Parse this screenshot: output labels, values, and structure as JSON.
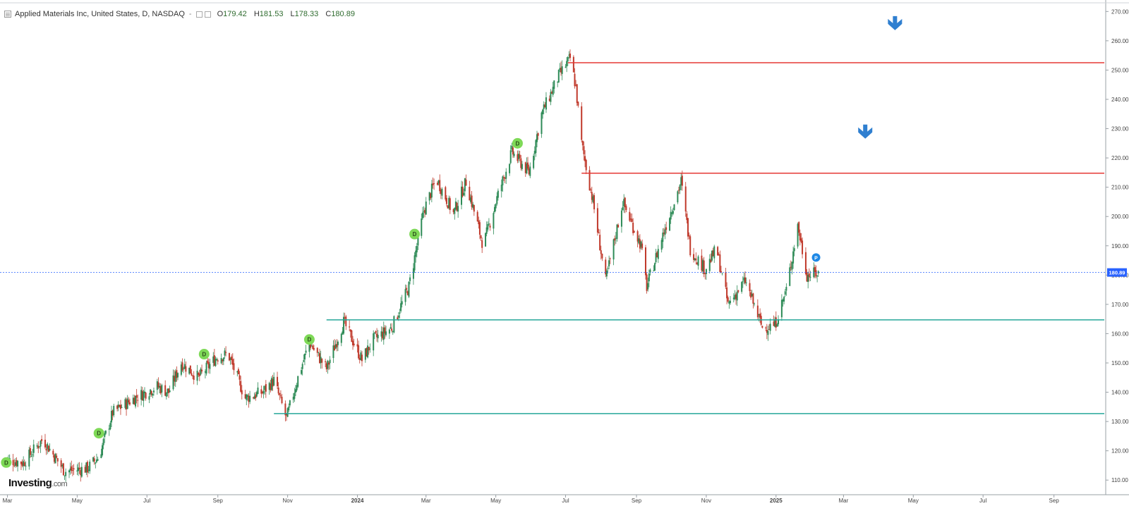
{
  "header": {
    "symbol": "Applied Materials Inc, United States, D, NASDAQ",
    "dash": "-",
    "open": "179.42",
    "high": "181.53",
    "low": "178.33",
    "close": "180.89",
    "open_prefix": "O",
    "high_prefix": "H",
    "low_prefix": "L",
    "close_prefix": "C"
  },
  "logo": {
    "brand": "Investing",
    "domain": ".com"
  },
  "colors": {
    "up": "#2e8b57",
    "down": "#c0392b",
    "resistance": "#e53935",
    "support": "#26a69a",
    "price_line": "#2962ff",
    "dividend_marker": "#7ed957",
    "arrow": "#2f7fd0"
  },
  "icons": [
    "menu-icon",
    "down-arrow-icon",
    "dividend-marker-icon",
    "earnings-marker-icon"
  ],
  "chart_data": {
    "type": "candlestick",
    "title": "Applied Materials Inc, United States, D, NASDAQ",
    "ylim": [
      105,
      272
    ],
    "y_ticks": [
      "110.00",
      "120.00",
      "130.00",
      "140.00",
      "150.00",
      "160.00",
      "170.00",
      "180.00",
      "190.00",
      "200.00",
      "210.00",
      "220.00",
      "230.00",
      "240.00",
      "250.00",
      "260.00",
      "270.00"
    ],
    "x_ticks": [
      "Mar",
      "May",
      "Jul",
      "Sep",
      "Nov",
      "2024",
      "Mar",
      "May",
      "Jul",
      "Sep",
      "Nov",
      "2025",
      "Mar",
      "May",
      "Jul",
      "Sep"
    ],
    "x_range": [
      "2023-02-25",
      "2025-10-15"
    ],
    "price_path": [
      [
        "2023-02-27",
        117
      ],
      [
        "2023-03-15",
        116
      ],
      [
        "2023-04-01",
        124
      ],
      [
        "2023-04-20",
        113
      ],
      [
        "2023-05-10",
        114
      ],
      [
        "2023-05-20",
        118
      ],
      [
        "2023-06-01",
        133
      ],
      [
        "2023-06-20",
        138
      ],
      [
        "2023-07-10",
        142
      ],
      [
        "2023-07-20",
        140
      ],
      [
        "2023-07-31",
        150
      ],
      [
        "2023-08-15",
        145
      ],
      [
        "2023-08-31",
        152
      ],
      [
        "2023-09-10",
        153
      ],
      [
        "2023-09-25",
        138
      ],
      [
        "2023-10-10",
        140
      ],
      [
        "2023-10-20",
        144
      ],
      [
        "2023-10-31",
        131
      ],
      [
        "2023-11-10",
        145
      ],
      [
        "2023-11-20",
        157
      ],
      [
        "2023-12-05",
        148
      ],
      [
        "2023-12-20",
        164
      ],
      [
        "2024-01-05",
        151
      ],
      [
        "2024-01-15",
        158
      ],
      [
        "2024-01-31",
        162
      ],
      [
        "2024-02-15",
        176
      ],
      [
        "2024-02-28",
        202
      ],
      [
        "2024-03-10",
        213
      ],
      [
        "2024-03-25",
        201
      ],
      [
        "2024-04-05",
        212
      ],
      [
        "2024-04-20",
        190
      ],
      [
        "2024-05-01",
        205
      ],
      [
        "2024-05-15",
        222
      ],
      [
        "2024-05-30",
        215
      ],
      [
        "2024-06-10",
        235
      ],
      [
        "2024-06-25",
        248
      ],
      [
        "2024-07-05",
        254
      ],
      [
        "2024-07-10",
        244
      ],
      [
        "2024-07-15",
        225
      ],
      [
        "2024-07-25",
        205
      ],
      [
        "2024-08-05",
        178
      ],
      [
        "2024-08-20",
        205
      ],
      [
        "2024-09-05",
        190
      ],
      [
        "2024-09-10",
        176
      ],
      [
        "2024-09-25",
        195
      ],
      [
        "2024-10-10",
        212
      ],
      [
        "2024-10-18",
        189
      ],
      [
        "2024-10-31",
        182
      ],
      [
        "2024-11-10",
        189
      ],
      [
        "2024-11-20",
        170
      ],
      [
        "2024-12-05",
        178
      ],
      [
        "2024-12-20",
        162
      ],
      [
        "2024-12-31",
        163
      ],
      [
        "2025-01-10",
        175
      ],
      [
        "2025-01-20",
        197
      ],
      [
        "2025-01-28",
        180
      ],
      [
        "2025-02-10",
        180.89
      ]
    ],
    "last_price": 180.89,
    "last_price_label": "180.89",
    "horizontal_levels": [
      {
        "name": "resistance-1",
        "value": 252.5,
        "role": "resistance",
        "from": "2024-07-03"
      },
      {
        "name": "resistance-2",
        "value": 214.8,
        "role": "resistance",
        "from": "2024-07-15"
      },
      {
        "name": "support-1",
        "value": 164.7,
        "role": "support",
        "from": "2023-12-05"
      },
      {
        "name": "support-2",
        "value": 132.7,
        "role": "support",
        "from": "2023-10-20"
      }
    ],
    "down_arrows": [
      {
        "date": "2025-04-15",
        "value": 266
      },
      {
        "date": "2025-03-20",
        "value": 229
      }
    ],
    "dividend_markers": [
      {
        "date": "2023-02-28",
        "value": 116,
        "label": "D"
      },
      {
        "date": "2023-05-20",
        "value": 126,
        "label": "D"
      },
      {
        "date": "2023-08-20",
        "value": 153,
        "label": "D"
      },
      {
        "date": "2023-11-20",
        "value": 158,
        "label": "D"
      },
      {
        "date": "2024-02-20",
        "value": 194,
        "label": "D"
      },
      {
        "date": "2024-05-20",
        "value": 225,
        "label": "D"
      }
    ],
    "earnings_markers": [
      {
        "date": "2025-02-05",
        "value": 186,
        "label": "P"
      }
    ]
  }
}
